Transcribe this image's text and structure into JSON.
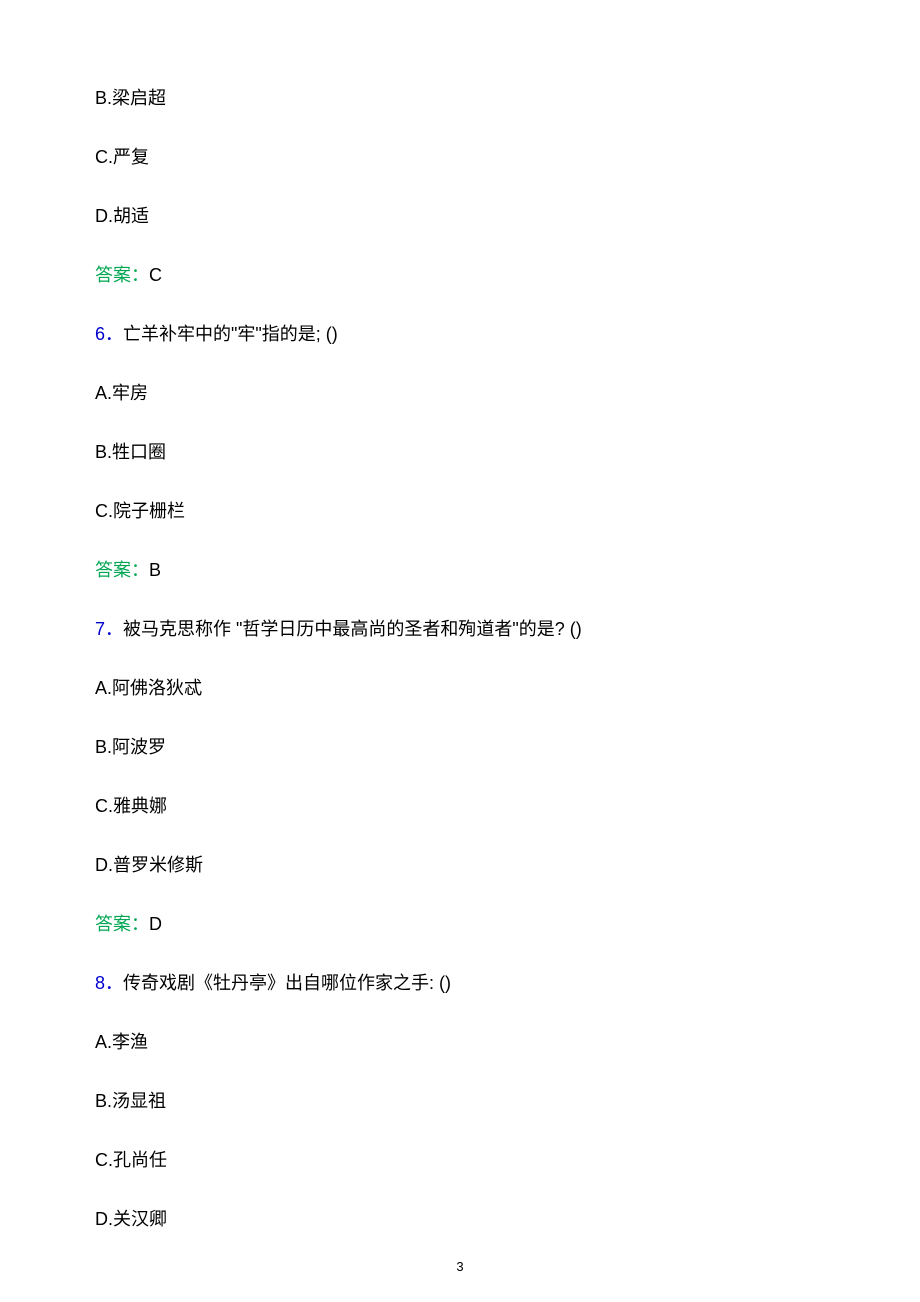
{
  "q5_tail": {
    "options": [
      {
        "label": "B.梁启超"
      },
      {
        "label": "C.严复"
      },
      {
        "label": "D.胡适"
      }
    ],
    "answer_label": "答案：",
    "answer_value": "C"
  },
  "q6": {
    "number": "6．",
    "text": "亡羊补牢中的\"牢\"指的是; ()",
    "options": [
      {
        "label": "A.牢房"
      },
      {
        "label": "B.牲口圈"
      },
      {
        "label": "C.院子栅栏"
      }
    ],
    "answer_label": "答案：",
    "answer_value": "B"
  },
  "q7": {
    "number": "7．",
    "text": "被马克思称作 \"哲学日历中最高尚的圣者和殉道者\"的是? ()",
    "options": [
      {
        "label": "A.阿佛洛狄忒"
      },
      {
        "label": "B.阿波罗"
      },
      {
        "label": "C.雅典娜"
      },
      {
        "label": "D.普罗米修斯"
      }
    ],
    "answer_label": "答案：",
    "answer_value": "D"
  },
  "q8": {
    "number": "8．",
    "text": "传奇戏剧《牡丹亭》出自哪位作家之手: ()",
    "options": [
      {
        "label": "A.李渔"
      },
      {
        "label": "B.汤显祖"
      },
      {
        "label": "C.孔尚任"
      },
      {
        "label": "D.关汉卿"
      }
    ]
  },
  "page_number": "3"
}
